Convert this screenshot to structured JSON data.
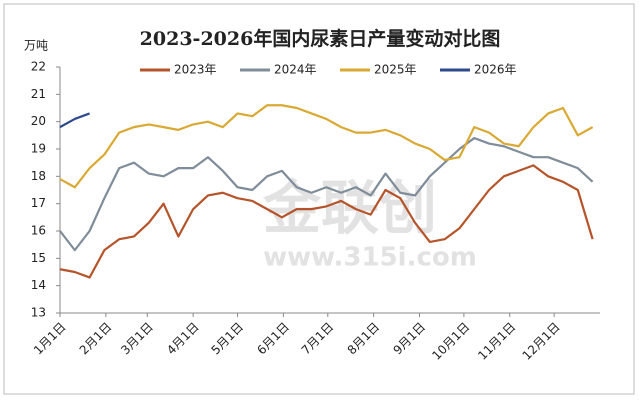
{
  "chart_data": {
    "type": "line",
    "title": "2023-2026年国内尿素日产量变动对比图",
    "y_label": "万吨",
    "watermark": [
      "金联创",
      "www.315i.com"
    ],
    "x": [
      1,
      11,
      21,
      31,
      41,
      51,
      61,
      71,
      81,
      91,
      101,
      111,
      121,
      131,
      141,
      151,
      161,
      171,
      181,
      191,
      201,
      211,
      221,
      231,
      241,
      251,
      261,
      271,
      281,
      291,
      301,
      311,
      321,
      331,
      341,
      351,
      361
    ],
    "xlim": [
      1,
      366
    ],
    "xticks": [
      {
        "value": 1,
        "label": "1月1日"
      },
      {
        "value": 32,
        "label": "2月1日"
      },
      {
        "value": 60,
        "label": "3月1日"
      },
      {
        "value": 91,
        "label": "4月1日"
      },
      {
        "value": 121,
        "label": "5月1日"
      },
      {
        "value": 152,
        "label": "6月1日"
      },
      {
        "value": 182,
        "label": "7月1日"
      },
      {
        "value": 213,
        "label": "8月1日"
      },
      {
        "value": 244,
        "label": "9月1日"
      },
      {
        "value": 274,
        "label": "10月1日"
      },
      {
        "value": 305,
        "label": "11月1日"
      },
      {
        "value": 335,
        "label": "12月1日"
      }
    ],
    "ylim": [
      13,
      22
    ],
    "yticks": [
      13,
      14,
      15,
      16,
      17,
      18,
      19,
      20,
      21,
      22
    ],
    "legend": "top",
    "series": [
      {
        "name": "2023年",
        "color": "#b5542a",
        "values": [
          14.6,
          14.5,
          14.3,
          15.3,
          15.7,
          15.8,
          16.3,
          17.0,
          15.8,
          16.8,
          17.3,
          17.4,
          17.2,
          17.1,
          16.8,
          16.5,
          16.8,
          16.8,
          16.9,
          17.1,
          16.8,
          16.6,
          17.5,
          17.2,
          16.3,
          15.6,
          15.7,
          16.1,
          16.8,
          17.5,
          18.0,
          18.2,
          18.4,
          18.0,
          17.8,
          17.5,
          15.7
        ]
      },
      {
        "name": "2024年",
        "color": "#7f8c99",
        "values": [
          16.0,
          15.3,
          16.0,
          17.2,
          18.3,
          18.5,
          18.1,
          18.0,
          18.3,
          18.3,
          18.7,
          18.2,
          17.6,
          17.5,
          18.0,
          18.2,
          17.6,
          17.4,
          17.6,
          17.4,
          17.6,
          17.3,
          18.1,
          17.4,
          17.3,
          18.0,
          18.5,
          19.0,
          19.4,
          19.2,
          19.1,
          18.9,
          18.7,
          18.7,
          18.5,
          18.3,
          17.8
        ]
      },
      {
        "name": "2025年",
        "color": "#d9a933",
        "values": [
          17.9,
          17.6,
          18.3,
          18.8,
          19.6,
          19.8,
          19.9,
          19.8,
          19.7,
          19.9,
          20.0,
          19.8,
          20.3,
          20.2,
          20.6,
          20.6,
          20.5,
          20.3,
          20.1,
          19.8,
          19.6,
          19.6,
          19.7,
          19.5,
          19.2,
          19.0,
          18.6,
          18.7,
          19.8,
          19.6,
          19.2,
          19.1,
          19.8,
          20.3,
          20.5,
          19.5,
          19.8
        ]
      },
      {
        "name": "2026年",
        "color": "#2e4a8c",
        "values": [
          19.8,
          20.1,
          20.3,
          null,
          null,
          null,
          null,
          null,
          null,
          null,
          null,
          null,
          null,
          null,
          null,
          null,
          null,
          null,
          null,
          null,
          null,
          null,
          null,
          null,
          null,
          null,
          null,
          null,
          null,
          null,
          null,
          null,
          null,
          null,
          null,
          null,
          null
        ]
      }
    ]
  }
}
